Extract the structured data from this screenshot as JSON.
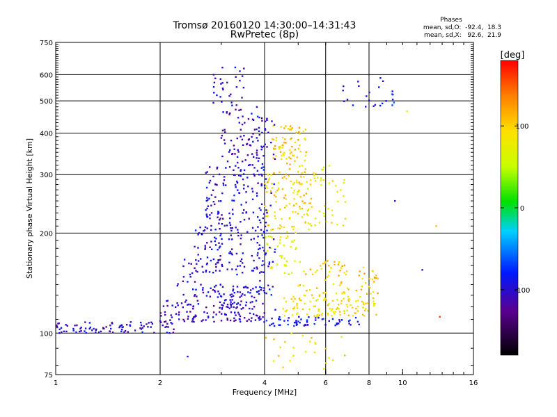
{
  "chart_data": {
    "type": "scatter",
    "title": "Tromsø 20160120 14:30:00–14:31:43",
    "subtitle": "RwPretec (8p)",
    "xlabel": "Frequency [MHz]",
    "ylabel": "Stationary phase Virtual Height [km]",
    "xscale": "log",
    "yscale": "log",
    "xlim": [
      1,
      16
    ],
    "ylim": [
      75,
      750
    ],
    "grid": true,
    "x_ticks": [
      1,
      2,
      4,
      6,
      8,
      10,
      16
    ],
    "x_tick_labels": [
      "1",
      "2",
      "4",
      "6",
      "8",
      "10",
      "16"
    ],
    "x_gridlines": [
      2,
      4,
      6,
      8
    ],
    "y_ticks": [
      75,
      100,
      200,
      300,
      400,
      500,
      600,
      750
    ],
    "y_tick_labels": [
      "75",
      "100",
      "200",
      "300",
      "400",
      "500",
      "600",
      "750"
    ],
    "y_gridlines": [
      100,
      200,
      300,
      400,
      500,
      600
    ],
    "stats": {
      "heading": "Phases",
      "line_o": "mean, sd,O:  -92.4,  18.3",
      "line_x": "mean, sd,X:   92.6,  21.9"
    },
    "colorbar": {
      "unit": "[deg]",
      "min": -180,
      "max": 180,
      "ticks": [
        100,
        0,
        -100
      ],
      "tick_labels": [
        "100",
        "0",
        "-100"
      ]
    },
    "clusters": [
      {
        "x": [
          1.0,
          2.2
        ],
        "y": [
          100,
          108
        ],
        "phase": -100,
        "n": 90
      },
      {
        "x": [
          2.0,
          4.0
        ],
        "y": [
          108,
          116
        ],
        "phase": -110,
        "n": 80
      },
      {
        "x": [
          2.0,
          3.8
        ],
        "y": [
          118,
          126
        ],
        "phase": -105,
        "n": 60
      },
      {
        "x": [
          2.5,
          4.0
        ],
        "y": [
          128,
          140
        ],
        "phase": -100,
        "n": 55
      },
      {
        "x": [
          4.0,
          7.5
        ],
        "y": [
          105,
          112
        ],
        "phase": -90,
        "n": 60
      },
      {
        "x": [
          4.5,
          8.5
        ],
        "y": [
          112,
          130
        ],
        "phase": 90,
        "n": 110
      },
      {
        "x": [
          5.0,
          8.5
        ],
        "y": [
          130,
          165
        ],
        "phase": 100,
        "n": 80
      },
      {
        "x": [
          2.5,
          4.0
        ],
        "y": [
          150,
          210
        ],
        "phase": -100,
        "n": 110
      },
      {
        "x": [
          2.7,
          4.0
        ],
        "y": [
          210,
          320
        ],
        "phase": -100,
        "n": 120
      },
      {
        "x": [
          3.0,
          4.0
        ],
        "y": [
          320,
          480
        ],
        "phase": -105,
        "n": 80
      },
      {
        "x": [
          2.8,
          3.5
        ],
        "y": [
          480,
          650
        ],
        "phase": -100,
        "n": 30
      },
      {
        "x": [
          4.0,
          5.5
        ],
        "y": [
          200,
          300
        ],
        "phase": 95,
        "n": 100
      },
      {
        "x": [
          4.2,
          5.3
        ],
        "y": [
          300,
          420
        ],
        "phase": 105,
        "n": 80
      },
      {
        "x": [
          5.0,
          7.0
        ],
        "y": [
          210,
          320
        ],
        "phase": 80,
        "n": 50
      },
      {
        "x": [
          4.0,
          5.0
        ],
        "y": [
          150,
          200
        ],
        "phase": 70,
        "n": 40
      },
      {
        "x": [
          3.8,
          4.3
        ],
        "y": [
          110,
          450
        ],
        "phase": -95,
        "n": 70
      },
      {
        "x": [
          6.5,
          9.5
        ],
        "y": [
          480,
          590
        ],
        "phase": -80,
        "n": 25
      },
      {
        "x": [
          4.0,
          7.0
        ],
        "y": [
          78,
          100
        ],
        "phase": 90,
        "n": 25
      },
      {
        "x": [
          2.2,
          3.0
        ],
        "y": [
          130,
          170
        ],
        "phase": -100,
        "n": 30
      }
    ],
    "isolated_points": [
      {
        "x": 11.4,
        "y": 155,
        "phase": -100
      },
      {
        "x": 12.8,
        "y": 112,
        "phase": 160
      },
      {
        "x": 12.5,
        "y": 210,
        "phase": 110
      },
      {
        "x": 9.5,
        "y": 250,
        "phase": -105
      },
      {
        "x": 10.3,
        "y": 465,
        "phase": 60
      },
      {
        "x": 2.4,
        "y": 85,
        "phase": -100
      }
    ]
  }
}
